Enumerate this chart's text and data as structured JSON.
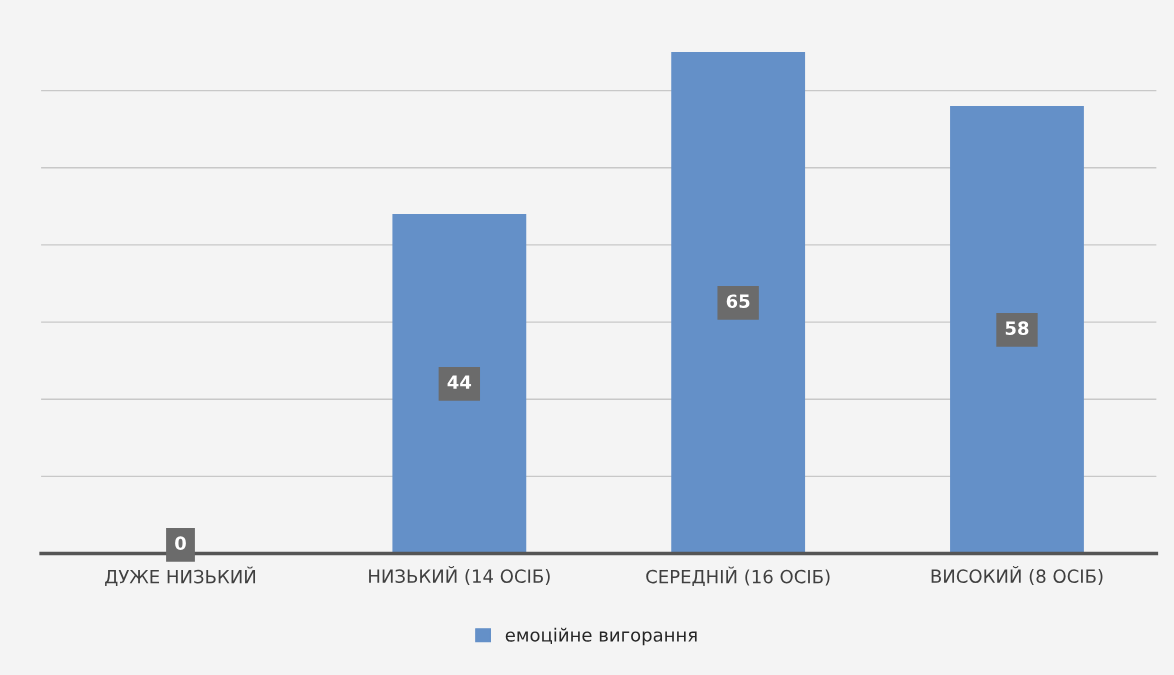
{
  "chart_data": {
    "type": "bar",
    "categories": [
      "ДУЖЕ НИЗЬКИЙ",
      "НИЗЬКИЙ (14 ОСІБ)",
      "СЕРЕДНІЙ (16 ОСІБ)",
      "ВИСОКИЙ (8 ОСІБ)"
    ],
    "series": [
      {
        "name": "емоційне вигорання",
        "color": "#6490c8",
        "values": [
          0,
          44,
          65,
          58
        ]
      }
    ],
    "data_labels": true,
    "grid": "y",
    "legend": "bottom",
    "tick_labels": "x"
  }
}
